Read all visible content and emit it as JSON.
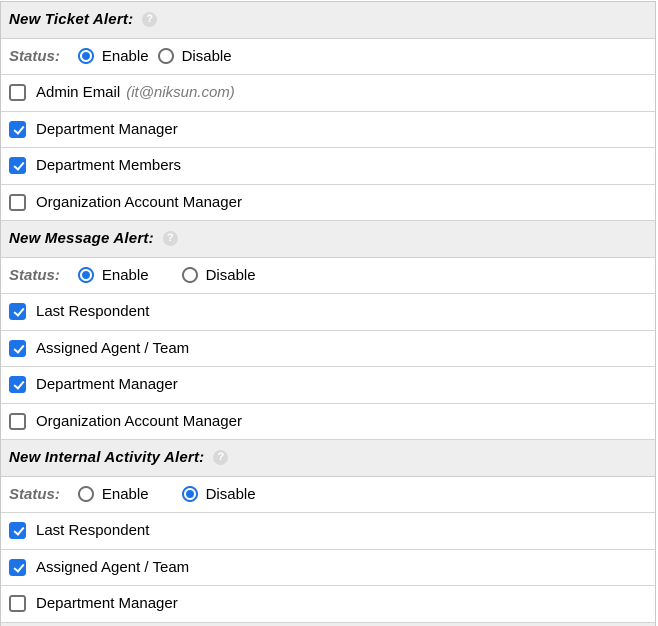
{
  "colors": {
    "accent_blue": "#1a73e8",
    "header_background": "#eeeeee",
    "row_border": "#d4d4d4",
    "muted_text": "#6e6e6e"
  },
  "sections": [
    {
      "title": "New Ticket Alert:",
      "help_icon": "question-mark-icon",
      "status_label": "Status:",
      "enable_label": "Enable",
      "disable_label": "Disable",
      "enable_selected": true,
      "disable_selected": false,
      "options": [
        {
          "label": "Admin Email",
          "note": "(it@niksun.com)",
          "checked": false
        },
        {
          "label": "Department Manager",
          "checked": true
        },
        {
          "label": "Department Members",
          "checked": true
        },
        {
          "label": "Organization Account Manager",
          "checked": false
        }
      ]
    },
    {
      "title": "New Message Alert:",
      "help_icon": "question-mark-icon",
      "status_label": "Status:",
      "enable_label": "Enable",
      "disable_label": "Disable",
      "enable_selected": true,
      "disable_selected": false,
      "options": [
        {
          "label": "Last Respondent",
          "checked": true
        },
        {
          "label": "Assigned Agent / Team",
          "checked": true
        },
        {
          "label": "Department Manager",
          "checked": true
        },
        {
          "label": "Organization Account Manager",
          "checked": false
        }
      ]
    },
    {
      "title": "New Internal Activity Alert:",
      "help_icon": "question-mark-icon",
      "status_label": "Status:",
      "enable_label": "Enable",
      "disable_label": "Disable",
      "enable_selected": false,
      "disable_selected": true,
      "options": [
        {
          "label": "Last Respondent",
          "checked": true
        },
        {
          "label": "Assigned Agent / Team",
          "checked": true
        },
        {
          "label": "Department Manager",
          "checked": false
        }
      ]
    }
  ]
}
